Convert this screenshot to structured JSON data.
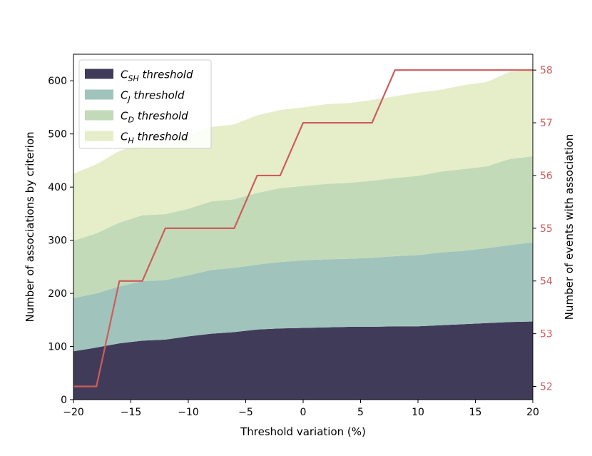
{
  "chart_data": {
    "type": "area",
    "stacked": true,
    "x": [
      -20,
      -18,
      -16,
      -14,
      -12,
      -10,
      -8,
      -6,
      -4,
      -2,
      0,
      2,
      4,
      6,
      8,
      10,
      12,
      14,
      16,
      18,
      20
    ],
    "xlabel": "Threshold variation (%)",
    "ylabel": "Number of associations by criterion",
    "y2label": "Number of events with association",
    "xlim": [
      -20,
      20
    ],
    "ylim": [
      0,
      650
    ],
    "y2lim": [
      51.75,
      58.3
    ],
    "xticks": [
      -20,
      -15,
      -10,
      -5,
      0,
      5,
      10,
      15,
      20
    ],
    "xtick_labels": [
      "−20",
      "−15",
      "−10",
      "−5",
      "0",
      "5",
      "10",
      "15",
      "20"
    ],
    "yticks": [
      0,
      100,
      200,
      300,
      400,
      500,
      600
    ],
    "y2ticks": [
      52,
      53,
      54,
      55,
      56,
      57,
      58
    ],
    "legend_position": "top-left",
    "grid": false,
    "series": [
      {
        "key": "csh",
        "name": "C",
        "subscript": "SH",
        "suffix": " threshold",
        "color": "#413b5a",
        "values": [
          91,
          98,
          106,
          111,
          113,
          119,
          124,
          127,
          132,
          134,
          135,
          136,
          137,
          137,
          138,
          138,
          140,
          142,
          144,
          146,
          147
        ]
      },
      {
        "key": "cj",
        "name": "C",
        "subscript": "J",
        "suffix": " threshold",
        "color": "#a0c4bc",
        "values": [
          100,
          102,
          107,
          112,
          112,
          115,
          120,
          121,
          122,
          125,
          127,
          128,
          128,
          130,
          132,
          134,
          137,
          138,
          141,
          145,
          149
        ]
      },
      {
        "key": "cd",
        "name": "C",
        "subscript": "D",
        "suffix": " threshold",
        "color": "#c2dab8",
        "values": [
          108,
          113,
          120,
          124,
          124,
          125,
          129,
          129,
          135,
          139,
          140,
          142,
          143,
          145,
          147,
          149,
          152,
          154,
          154,
          162,
          162
        ]
      },
      {
        "key": "ch",
        "name": "C",
        "subscript": "H",
        "suffix": " threshold",
        "color": "#e5eec9",
        "values": [
          126,
          130,
          135,
          135,
          136,
          140,
          140,
          141,
          146,
          147,
          148,
          150,
          150,
          152,
          154,
          157,
          154,
          158,
          159,
          164,
          162
        ]
      }
    ],
    "step_series": {
      "name": "Number of events with association",
      "axis": "right",
      "color": "#cd5c5c",
      "x": [
        -20,
        -18,
        -16,
        -14,
        -12,
        -10,
        -8,
        -6,
        -4,
        -2,
        0,
        2,
        4,
        6,
        8,
        10,
        12,
        14,
        16,
        18,
        20
      ],
      "values": [
        52,
        52,
        54,
        54,
        55,
        55,
        55,
        55,
        56,
        56,
        57,
        57,
        57,
        57,
        58,
        58,
        58,
        58,
        58,
        58,
        58
      ]
    }
  }
}
